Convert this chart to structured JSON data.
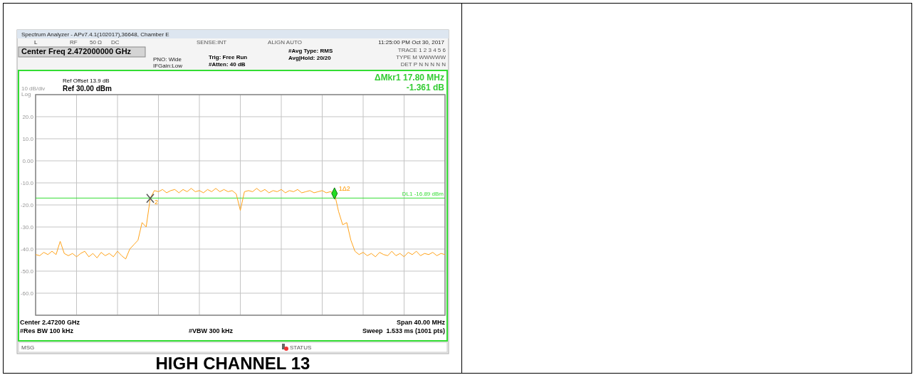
{
  "chart_data": {
    "type": "line",
    "title": "HIGH CHANNEL 13",
    "categories": [
      null,
      null,
      null,
      null,
      null,
      null,
      null,
      null,
      null,
      null,
      null,
      null,
      null,
      null,
      null,
      null,
      null,
      null,
      null,
      null,
      null,
      null,
      null,
      null,
      null,
      null,
      null,
      null,
      null,
      null,
      null,
      null,
      null,
      null,
      null,
      null,
      null,
      null,
      null,
      null,
      null,
      null,
      null,
      null,
      null,
      null,
      null,
      null,
      null,
      null,
      null,
      null,
      null,
      null,
      null,
      null,
      null,
      null,
      null,
      null,
      null,
      null,
      null,
      null,
      null,
      null,
      null,
      null,
      null,
      null,
      null,
      null,
      null,
      null,
      null,
      null,
      null,
      null,
      null,
      null,
      null,
      null,
      null,
      null,
      null,
      null,
      null,
      null,
      null,
      null,
      null,
      null,
      null,
      null,
      null,
      null,
      null,
      null,
      null,
      null,
      null
    ],
    "ylim": [
      -70,
      30
    ],
    "yticks": [
      {
        "value": 30,
        "label": null
      },
      {
        "value": 20,
        "label": "20.0"
      },
      {
        "value": 10,
        "label": "10.0"
      },
      {
        "value": 0,
        "label": "0.00"
      },
      {
        "value": -10,
        "label": "-10.0"
      },
      {
        "value": -20,
        "label": "-20.0"
      },
      {
        "value": -30,
        "label": "-30.0"
      },
      {
        "value": -40,
        "label": "-40.0"
      },
      {
        "value": -50,
        "label": "-50.0"
      },
      {
        "value": -60,
        "label": "-60.0"
      },
      {
        "value": -70,
        "label": null
      }
    ],
    "tick_labels": "y",
    "grid": true,
    "ref_lines": [
      {
        "axis": "y",
        "value": -16.89,
        "label": "DL1 -16.89 dBm",
        "color": "#33dd33"
      }
    ],
    "series": [
      {
        "color": "#ffa31a",
        "values": [
          -42.5,
          -43,
          -41.5,
          -42.5,
          -41,
          -42.5,
          -36.5,
          -42,
          -43,
          -42,
          -43.5,
          -42,
          -41,
          -43.5,
          -42,
          -44,
          -41.5,
          -43,
          -42,
          -43.5,
          -41,
          -43,
          -44.5,
          -40,
          -38,
          -36,
          -28,
          -30,
          -17,
          -13.5,
          -14,
          -13,
          -14.5,
          -13.5,
          -13,
          -14.5,
          -13,
          -14,
          -12.5,
          -14,
          -13.5,
          -14.5,
          -13,
          -14,
          -12.5,
          -14,
          -13,
          -14,
          -13.5,
          -15,
          -22.5,
          -14,
          -13.5,
          -14,
          -12.5,
          -14,
          -13,
          -14.5,
          -13.5,
          -14,
          -13,
          -14.5,
          -13.5,
          -14,
          -13,
          -14.5,
          -14,
          -13.5,
          -14.5,
          -14,
          -13.5,
          -14.5,
          -14,
          -14.8,
          -23,
          -29,
          -28,
          -36,
          -41,
          -42.5,
          -41.5,
          -43,
          -42,
          -43.5,
          -41.5,
          -42.5,
          -43,
          -41,
          -43,
          -42,
          -43.5,
          -41.5,
          -42.5,
          -41,
          -43,
          -42,
          -42.5,
          -41.5,
          -43,
          -42,
          -42.5
        ]
      }
    ],
    "annotations": [
      "Spectrum Analyzer - APv7.4.1(102017),36648, Chamber E",
      "L",
      "RF",
      "50 Ω",
      "DC",
      "SENSE:INT",
      "ALIGN AUTO",
      "11:25:00 PM Oct 30, 2017",
      "Center Freq 2.472000000 GHz",
      "PNO: Wide",
      "IFGain:Low",
      "Trig: Free Run",
      "#Atten: 40 dB",
      "#Avg Type: RMS",
      "Avg|Hold: 20/20",
      "TRACE 1 2 3 4 5 6",
      "TYPE M WWWWW",
      "DET P N N N N N",
      "Ref Offset 13.9 dB",
      "Ref 30.00 dBm",
      "10 dB/div",
      "Log",
      "ΔMkr1 17.80 MHz",
      "-1.361 dB",
      "Center 2.47200 GHz",
      "Span 40.00 MHz",
      "#Res BW 100 kHz",
      "#VBW 300 kHz",
      "Sweep  1.533 ms (1001 pts)",
      "MSG",
      "STATUS",
      "1Δ2",
      "2"
    ]
  }
}
